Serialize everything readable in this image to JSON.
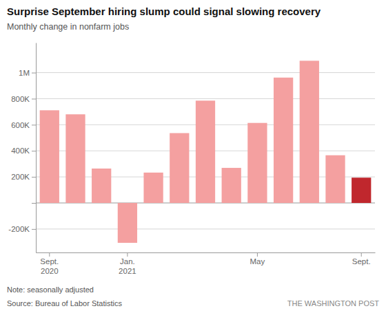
{
  "chart_data": {
    "type": "bar",
    "title": "Surprise September hiring slump could signal slowing recovery",
    "subtitle": "Monthly change in nonfarm jobs",
    "note": "Note: seasonally adjusted",
    "source": "Source: Bureau of Labor Statistics",
    "credit": "THE WASHINGTON POST",
    "categories": [
      "Sept.\n2020",
      null,
      null,
      "Jan.\n2021",
      null,
      null,
      null,
      null,
      "May",
      null,
      null,
      null,
      "Sept."
    ],
    "values": [
      711000,
      680000,
      264000,
      -306000,
      233000,
      536000,
      785000,
      269000,
      614000,
      962000,
      1091000,
      366000,
      194000
    ],
    "colors": [
      "#f4a0a0",
      "#f4a0a0",
      "#f4a0a0",
      "#f4a0a0",
      "#f4a0a0",
      "#f4a0a0",
      "#f4a0a0",
      "#f4a0a0",
      "#f4a0a0",
      "#f4a0a0",
      "#f4a0a0",
      "#f4a0a0",
      "#c0272d"
    ],
    "ylim": [
      -380000,
      1230000
    ],
    "yticks": [
      {
        "value": -200000,
        "label": "-200K"
      },
      {
        "value": 0,
        "label": null
      },
      {
        "value": 200000,
        "label": "200K"
      },
      {
        "value": 400000,
        "label": "400K"
      },
      {
        "value": 600000,
        "label": "600K"
      },
      {
        "value": 800000,
        "label": "800K"
      },
      {
        "value": 1000000,
        "label": "1M"
      }
    ],
    "grid": true
  }
}
